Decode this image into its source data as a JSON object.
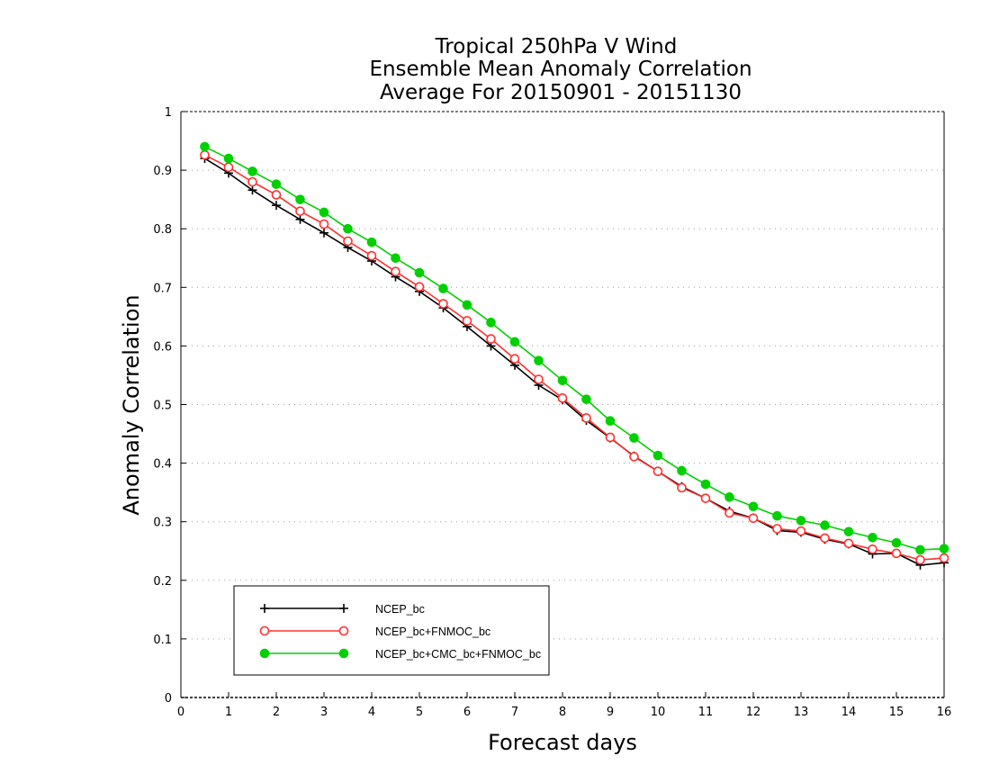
{
  "chart_data": {
    "type": "line",
    "title_lines": [
      "Tropical 250hPa V Wind",
      "Ensemble Mean Anomaly Correlation",
      "Average For 20150901 - 20151130"
    ],
    "xlabel": "Forecast days",
    "ylabel": "Anomaly Correlation",
    "xlim": [
      0,
      16
    ],
    "ylim": [
      0,
      1
    ],
    "xticks": [
      "0",
      "1",
      "2",
      "3",
      "4",
      "5",
      "6",
      "7",
      "8",
      "9",
      "10",
      "11",
      "12",
      "13",
      "14",
      "15",
      "16"
    ],
    "yticks": [
      "0",
      "0.1",
      "0.2",
      "0.3",
      "0.4",
      "0.5",
      "0.6",
      "0.7",
      "0.8",
      "0.9",
      "1"
    ],
    "grid": "horizontal-dotted",
    "legend_position": "bottom-left",
    "x": [
      0.5,
      1,
      1.5,
      2,
      2.5,
      3,
      3.5,
      4,
      4.5,
      5,
      5.5,
      6,
      6.5,
      7,
      7.5,
      8,
      8.5,
      9,
      9.5,
      10,
      10.5,
      11,
      11.5,
      12,
      12.5,
      13,
      13.5,
      14,
      14.5,
      15,
      15.5,
      16
    ],
    "series": [
      {
        "name": "NCEP_bc",
        "color": "#000000",
        "marker": "plus",
        "values": [
          0.92,
          0.895,
          0.866,
          0.84,
          0.816,
          0.793,
          0.768,
          0.745,
          0.718,
          0.693,
          0.665,
          0.633,
          0.6,
          0.567,
          0.533,
          0.508,
          0.473,
          0.443,
          0.412,
          0.386,
          0.36,
          0.34,
          0.318,
          0.306,
          0.285,
          0.282,
          0.27,
          0.262,
          0.245,
          0.246,
          0.226,
          0.23
        ]
      },
      {
        "name": "NCEP_bc+FNMOC_bc",
        "color": "#ff3030",
        "marker": "open-circle",
        "values": [
          0.926,
          0.905,
          0.88,
          0.858,
          0.83,
          0.808,
          0.779,
          0.754,
          0.727,
          0.701,
          0.672,
          0.643,
          0.612,
          0.578,
          0.543,
          0.511,
          0.477,
          0.444,
          0.411,
          0.386,
          0.358,
          0.34,
          0.315,
          0.306,
          0.288,
          0.284,
          0.272,
          0.263,
          0.253,
          0.246,
          0.235,
          0.238
        ]
      },
      {
        "name": "NCEP_bc+CMC_bc+FNMOC_bc",
        "color": "#00d000",
        "marker": "filled-circle",
        "values": [
          0.94,
          0.92,
          0.898,
          0.876,
          0.85,
          0.828,
          0.8,
          0.777,
          0.75,
          0.725,
          0.698,
          0.67,
          0.64,
          0.607,
          0.575,
          0.541,
          0.509,
          0.472,
          0.443,
          0.413,
          0.387,
          0.364,
          0.342,
          0.326,
          0.31,
          0.302,
          0.294,
          0.283,
          0.273,
          0.264,
          0.252,
          0.254
        ]
      }
    ]
  }
}
